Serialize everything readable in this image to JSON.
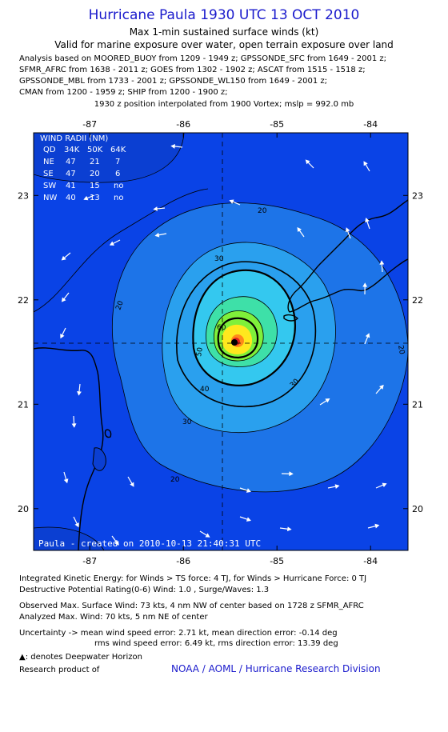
{
  "header": {
    "title": "Hurricane Paula 1930 UTC 13 OCT 2010",
    "subtitle": "Max 1-min sustained surface winds (kt)",
    "valid": "Valid for marine exposure over water, open terrain exposure over land",
    "analysis_lines": [
      "Analysis based on MOORED_BUOY from 1209 - 1949 z; GPSSONDE_SFC from 1649 - 2001 z;",
      "SFMR_AFRC from 1638 - 2011 z; GOES from 1302 - 1902 z; ASCAT from 1515 - 1518 z;",
      "GPSSONDE_MBL from 1733 - 2001 z; GPSSONDE_WL150 from 1649 - 2001 z;",
      "CMAN from 1200 - 1959 z; SHIP from 1200 - 1900 z;"
    ],
    "position_note": "1930 z position interpolated from 1900 Vortex; mslp = 992.0 mb"
  },
  "chart_data": {
    "type": "heatmap",
    "title": "Hurricane Paula 1930 UTC 13 OCT 2010",
    "xlabel": "",
    "ylabel": "",
    "x_ticks": [
      -87,
      -86,
      -85,
      -84
    ],
    "x_tick_labels": [
      "-87",
      "-86",
      "-85",
      "-84"
    ],
    "y_ticks": [
      20,
      21,
      22,
      23
    ],
    "y_tick_labels": [
      "20",
      "21",
      "22",
      "23"
    ],
    "xlim": [
      -87.6,
      -83.6
    ],
    "ylim": [
      19.6,
      23.6
    ],
    "center": {
      "lon": -85.7,
      "lat": 21.58
    },
    "contour_levels": [
      20,
      30,
      40,
      50,
      60,
      70
    ],
    "contour_labels": [
      "20",
      "30",
      "40",
      "50",
      "60"
    ],
    "wind_radii_table": {
      "title": "WIND RADII (NM)",
      "headers": [
        "QD",
        "34K",
        "50K",
        "64K"
      ],
      "rows": [
        [
          "NE",
          "47",
          "21",
          "7"
        ],
        [
          "SE",
          "47",
          "20",
          "6"
        ],
        [
          "SW",
          "41",
          "15",
          "no"
        ],
        [
          "NW",
          "40",
          "13",
          "no"
        ]
      ]
    },
    "credit": "Paula - created on 2010-10-13 21:40:31 UTC",
    "colors": {
      "ocean": "#0a43e6",
      "far": "#0b3fd2",
      "c20": "#1d74e8",
      "c30": "#2aa0ee",
      "c40": "#34c8ef",
      "c50": "#3ee0a8",
      "c60": "#7ff03a",
      "c70": "#ffe81e",
      "c80": "#ff8a1a",
      "eye": "#e02020"
    }
  },
  "footer": {
    "ike": "Integrated Kinetic Energy:  for Winds > TS force: 4 TJ,  for Winds > Hurricane Force: 0 TJ",
    "dpr": "Destructive Potential Rating(0-6)   Wind: 1.0 , Surge/Waves: 1.3",
    "observed": "Observed Max. Surface Wind: 73 kts, 4 nm NW of center based on 1728 z SFMR_AFRC",
    "analyzed": "Analyzed Max. Wind: 70 kts, 5 nm NE of center",
    "uncertainty1": "Uncertainty -> mean wind speed error: 2.71 kt,   mean direction error:  -0.14 deg",
    "uncertainty2": "rms wind speed error: 6.49 kt,   rms direction error: 13.39 deg",
    "deepwater": ": denotes Deepwater Horizon",
    "research": "Research product of",
    "noaa": "NOAA / AOML / Hurricane Research Division"
  }
}
